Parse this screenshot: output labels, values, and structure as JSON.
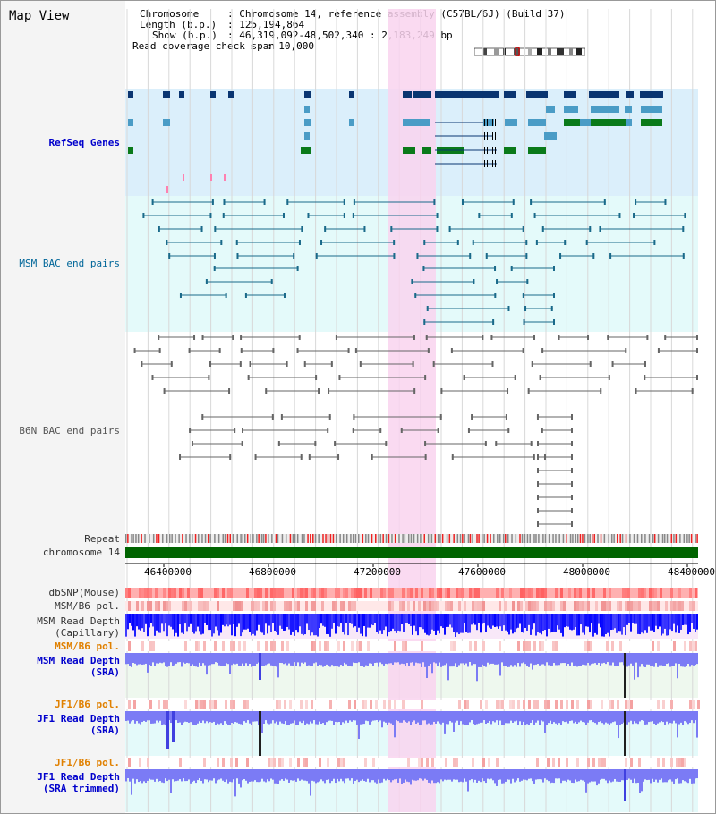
{
  "title": "Map View",
  "info": {
    "line1_label": "Chromosome",
    "line1_value": "Chromosome 14, reference assembly (C57BL/6J) (Build 37)",
    "line2_label": "Length (b.p.)",
    "line2_value": "125,194,864",
    "line3_label": "Show (b.p.)",
    "line3_value": "46,319,092-48,502,340 : 2,183,249 bp",
    "line4_label": "Read coverage check span",
    "line4_value": "10,000"
  },
  "tracks": {
    "refseq": "RefSeq Genes",
    "msm_bac": "MSM BAC end pairs",
    "b6n_bac": "B6N BAC end pairs",
    "repeat": "Repeat",
    "chromosome": "chromosome 14",
    "dbsnp": "dbSNP(Mouse)",
    "msm_b6_pol_1": "MSM/B6 pol.",
    "msm_read_depth_cap": "MSM Read Depth\n(Capillary)",
    "msm_b6_pol_2": "MSM/B6 pol.",
    "msm_read_depth_sra": "MSM Read Depth\n(SRA)",
    "jf1_b6_pol_1": "JF1/B6 pol.",
    "jf1_read_depth_sra": "JF1 Read Depth\n(SRA)",
    "jf1_b6_pol_2": "JF1/B6 pol.",
    "jf1_read_depth_trim": "JF1 Read Depth\n(SRA trimmed)"
  },
  "axis": {
    "ticks": [
      "46400000",
      "46800000",
      "47200000",
      "47600000",
      "48000000",
      "48400000"
    ]
  },
  "colors": {
    "highlight": "#f9d3ef",
    "refseq_bg": "#dbeffb",
    "msm_bg": "#e4fafa",
    "gene_dark": "#0a3571",
    "gene_mid": "#4a9cc6",
    "gene_green": "#0a7a1a",
    "chrom_green": "#006400",
    "snp_red": "#ff8080",
    "depth_blue": "#0000ff",
    "depth_light": "#7b7bf5",
    "pol_orange": "#e08000"
  }
}
